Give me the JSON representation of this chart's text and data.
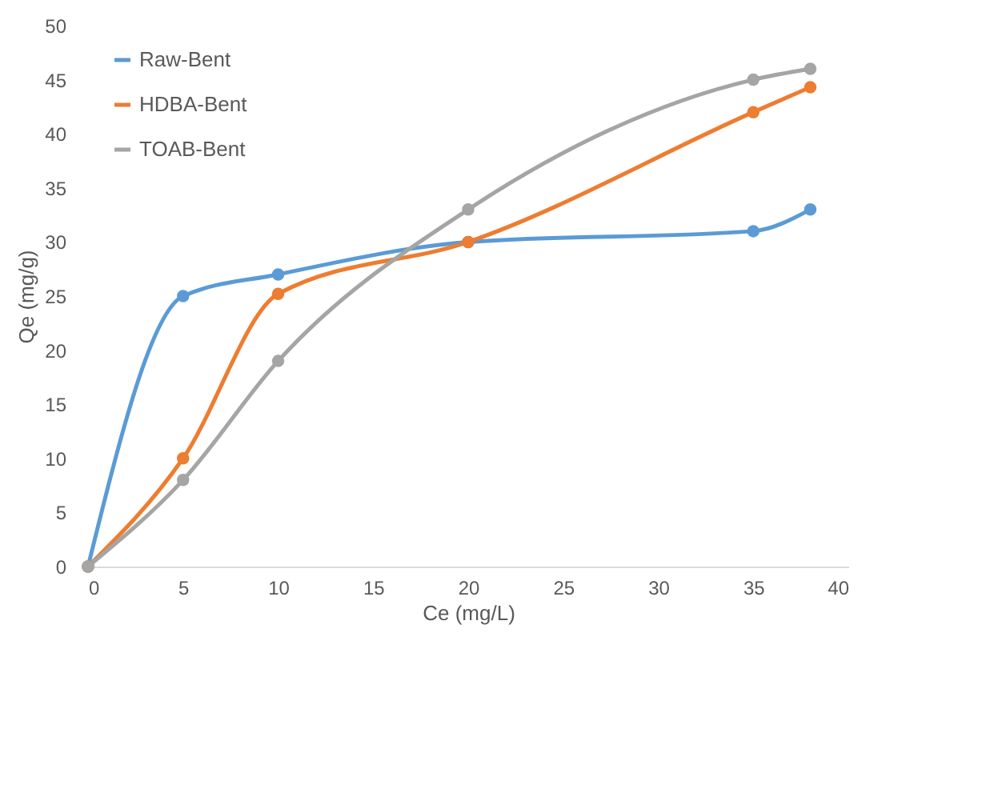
{
  "chart_data": {
    "type": "line",
    "xlabel": "Ce (mg/L)",
    "ylabel": "Qe  (mg/g)",
    "x": [
      0,
      5,
      10,
      20,
      35,
      38
    ],
    "series": [
      {
        "name": "Raw-Bent",
        "color": "#5b9bd5",
        "values": [
          0,
          25,
          27,
          30,
          31,
          33
        ]
      },
      {
        "name": "HDBA-Bent",
        "color": "#ed7d31",
        "values": [
          0,
          10,
          25.2,
          30,
          42,
          44.3
        ]
      },
      {
        "name": "TOAB-Bent",
        "color": "#a5a5a5",
        "values": [
          0,
          8,
          19,
          33,
          45,
          46
        ]
      }
    ],
    "xlim": [
      0,
      40
    ],
    "xticks": [
      0,
      5,
      10,
      15,
      20,
      25,
      30,
      35,
      40
    ],
    "ylim": [
      0,
      50
    ],
    "yticks": [
      0,
      5,
      10,
      15,
      20,
      25,
      30,
      35,
      40,
      45,
      50
    ],
    "grid": false,
    "legend": "top left",
    "marker": "circle",
    "line_style": "solid"
  }
}
